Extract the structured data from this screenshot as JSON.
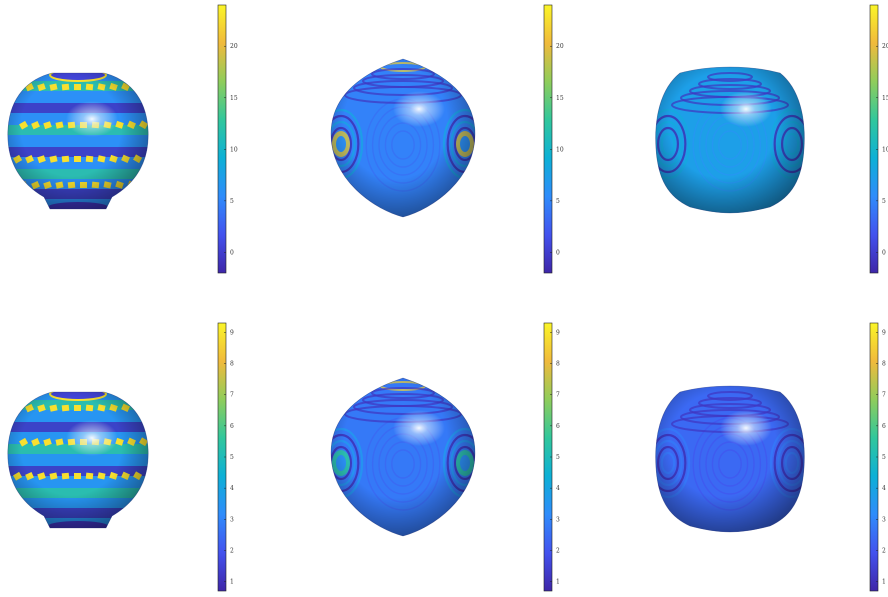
{
  "figure": {
    "colormap": [
      "#3e26a8",
      "#4352ee",
      "#2f8cfb",
      "#0db0d6",
      "#31c79c",
      "#8fcd5b",
      "#f0ba3c",
      "#fbf528"
    ],
    "rows": [
      {
        "colorbar_ticks": [
          "0",
          "5",
          "10",
          "15",
          "20"
        ],
        "colorbar_range": [
          -2,
          24
        ],
        "panels": [
          {
            "shape": "vase",
            "surface_level": 0.3,
            "band_level": 0.55
          },
          {
            "shape": "onion",
            "surface_level": 0.26,
            "band_level": 0.38
          },
          {
            "shape": "cube",
            "surface_level": 0.36,
            "band_level": 0.4
          }
        ]
      },
      {
        "colorbar_ticks": [
          "1",
          "2",
          "3",
          "4",
          "5",
          "6",
          "7",
          "8",
          "9"
        ],
        "colorbar_range": [
          0.7,
          9.3
        ],
        "panels": [
          {
            "shape": "vase",
            "surface_level": 0.32,
            "band_level": 0.55
          },
          {
            "shape": "onion",
            "surface_level": 0.24,
            "band_level": 0.34
          },
          {
            "shape": "cube",
            "surface_level": 0.2,
            "band_level": 0.24
          }
        ]
      }
    ]
  }
}
